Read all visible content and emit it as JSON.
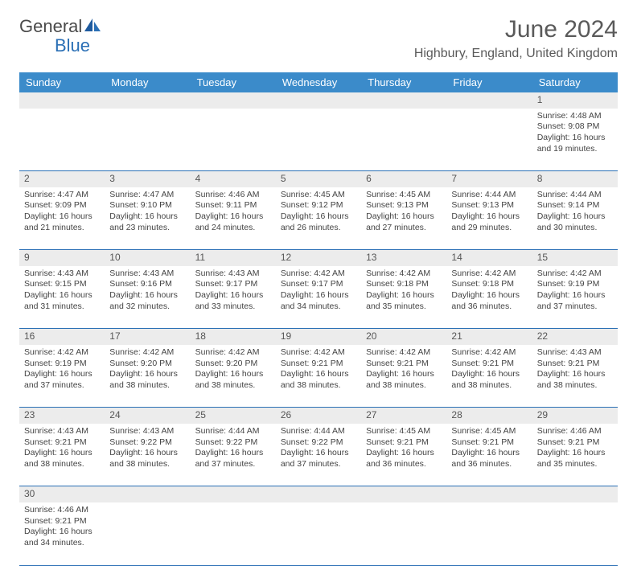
{
  "branding": {
    "logo_part1": "General",
    "logo_part2": "Blue",
    "logo_color_gray": "#4a4a4a",
    "logo_color_blue": "#2a6fb5"
  },
  "header": {
    "month_title": "June 2024",
    "location": "Highbury, England, United Kingdom"
  },
  "styling": {
    "header_row_bg": "#3b8bca",
    "header_row_text": "#ffffff",
    "daynum_bg": "#ececec",
    "cell_border": "#2a6fb5",
    "body_text": "#444444",
    "page_bg": "#ffffff",
    "title_fontsize_pt": 22,
    "location_fontsize_pt": 12,
    "dayname_fontsize_pt": 10,
    "cell_fontsize_pt": 8
  },
  "day_names": [
    "Sunday",
    "Monday",
    "Tuesday",
    "Wednesday",
    "Thursday",
    "Friday",
    "Saturday"
  ],
  "weeks": [
    [
      null,
      null,
      null,
      null,
      null,
      null,
      {
        "n": "1",
        "sr": "Sunrise: 4:48 AM",
        "ss": "Sunset: 9:08 PM",
        "d1": "Daylight: 16 hours",
        "d2": "and 19 minutes."
      }
    ],
    [
      {
        "n": "2",
        "sr": "Sunrise: 4:47 AM",
        "ss": "Sunset: 9:09 PM",
        "d1": "Daylight: 16 hours",
        "d2": "and 21 minutes."
      },
      {
        "n": "3",
        "sr": "Sunrise: 4:47 AM",
        "ss": "Sunset: 9:10 PM",
        "d1": "Daylight: 16 hours",
        "d2": "and 23 minutes."
      },
      {
        "n": "4",
        "sr": "Sunrise: 4:46 AM",
        "ss": "Sunset: 9:11 PM",
        "d1": "Daylight: 16 hours",
        "d2": "and 24 minutes."
      },
      {
        "n": "5",
        "sr": "Sunrise: 4:45 AM",
        "ss": "Sunset: 9:12 PM",
        "d1": "Daylight: 16 hours",
        "d2": "and 26 minutes."
      },
      {
        "n": "6",
        "sr": "Sunrise: 4:45 AM",
        "ss": "Sunset: 9:13 PM",
        "d1": "Daylight: 16 hours",
        "d2": "and 27 minutes."
      },
      {
        "n": "7",
        "sr": "Sunrise: 4:44 AM",
        "ss": "Sunset: 9:13 PM",
        "d1": "Daylight: 16 hours",
        "d2": "and 29 minutes."
      },
      {
        "n": "8",
        "sr": "Sunrise: 4:44 AM",
        "ss": "Sunset: 9:14 PM",
        "d1": "Daylight: 16 hours",
        "d2": "and 30 minutes."
      }
    ],
    [
      {
        "n": "9",
        "sr": "Sunrise: 4:43 AM",
        "ss": "Sunset: 9:15 PM",
        "d1": "Daylight: 16 hours",
        "d2": "and 31 minutes."
      },
      {
        "n": "10",
        "sr": "Sunrise: 4:43 AM",
        "ss": "Sunset: 9:16 PM",
        "d1": "Daylight: 16 hours",
        "d2": "and 32 minutes."
      },
      {
        "n": "11",
        "sr": "Sunrise: 4:43 AM",
        "ss": "Sunset: 9:17 PM",
        "d1": "Daylight: 16 hours",
        "d2": "and 33 minutes."
      },
      {
        "n": "12",
        "sr": "Sunrise: 4:42 AM",
        "ss": "Sunset: 9:17 PM",
        "d1": "Daylight: 16 hours",
        "d2": "and 34 minutes."
      },
      {
        "n": "13",
        "sr": "Sunrise: 4:42 AM",
        "ss": "Sunset: 9:18 PM",
        "d1": "Daylight: 16 hours",
        "d2": "and 35 minutes."
      },
      {
        "n": "14",
        "sr": "Sunrise: 4:42 AM",
        "ss": "Sunset: 9:18 PM",
        "d1": "Daylight: 16 hours",
        "d2": "and 36 minutes."
      },
      {
        "n": "15",
        "sr": "Sunrise: 4:42 AM",
        "ss": "Sunset: 9:19 PM",
        "d1": "Daylight: 16 hours",
        "d2": "and 37 minutes."
      }
    ],
    [
      {
        "n": "16",
        "sr": "Sunrise: 4:42 AM",
        "ss": "Sunset: 9:19 PM",
        "d1": "Daylight: 16 hours",
        "d2": "and 37 minutes."
      },
      {
        "n": "17",
        "sr": "Sunrise: 4:42 AM",
        "ss": "Sunset: 9:20 PM",
        "d1": "Daylight: 16 hours",
        "d2": "and 38 minutes."
      },
      {
        "n": "18",
        "sr": "Sunrise: 4:42 AM",
        "ss": "Sunset: 9:20 PM",
        "d1": "Daylight: 16 hours",
        "d2": "and 38 minutes."
      },
      {
        "n": "19",
        "sr": "Sunrise: 4:42 AM",
        "ss": "Sunset: 9:21 PM",
        "d1": "Daylight: 16 hours",
        "d2": "and 38 minutes."
      },
      {
        "n": "20",
        "sr": "Sunrise: 4:42 AM",
        "ss": "Sunset: 9:21 PM",
        "d1": "Daylight: 16 hours",
        "d2": "and 38 minutes."
      },
      {
        "n": "21",
        "sr": "Sunrise: 4:42 AM",
        "ss": "Sunset: 9:21 PM",
        "d1": "Daylight: 16 hours",
        "d2": "and 38 minutes."
      },
      {
        "n": "22",
        "sr": "Sunrise: 4:43 AM",
        "ss": "Sunset: 9:21 PM",
        "d1": "Daylight: 16 hours",
        "d2": "and 38 minutes."
      }
    ],
    [
      {
        "n": "23",
        "sr": "Sunrise: 4:43 AM",
        "ss": "Sunset: 9:21 PM",
        "d1": "Daylight: 16 hours",
        "d2": "and 38 minutes."
      },
      {
        "n": "24",
        "sr": "Sunrise: 4:43 AM",
        "ss": "Sunset: 9:22 PM",
        "d1": "Daylight: 16 hours",
        "d2": "and 38 minutes."
      },
      {
        "n": "25",
        "sr": "Sunrise: 4:44 AM",
        "ss": "Sunset: 9:22 PM",
        "d1": "Daylight: 16 hours",
        "d2": "and 37 minutes."
      },
      {
        "n": "26",
        "sr": "Sunrise: 4:44 AM",
        "ss": "Sunset: 9:22 PM",
        "d1": "Daylight: 16 hours",
        "d2": "and 37 minutes."
      },
      {
        "n": "27",
        "sr": "Sunrise: 4:45 AM",
        "ss": "Sunset: 9:21 PM",
        "d1": "Daylight: 16 hours",
        "d2": "and 36 minutes."
      },
      {
        "n": "28",
        "sr": "Sunrise: 4:45 AM",
        "ss": "Sunset: 9:21 PM",
        "d1": "Daylight: 16 hours",
        "d2": "and 36 minutes."
      },
      {
        "n": "29",
        "sr": "Sunrise: 4:46 AM",
        "ss": "Sunset: 9:21 PM",
        "d1": "Daylight: 16 hours",
        "d2": "and 35 minutes."
      }
    ],
    [
      {
        "n": "30",
        "sr": "Sunrise: 4:46 AM",
        "ss": "Sunset: 9:21 PM",
        "d1": "Daylight: 16 hours",
        "d2": "and 34 minutes."
      },
      null,
      null,
      null,
      null,
      null,
      null
    ]
  ]
}
